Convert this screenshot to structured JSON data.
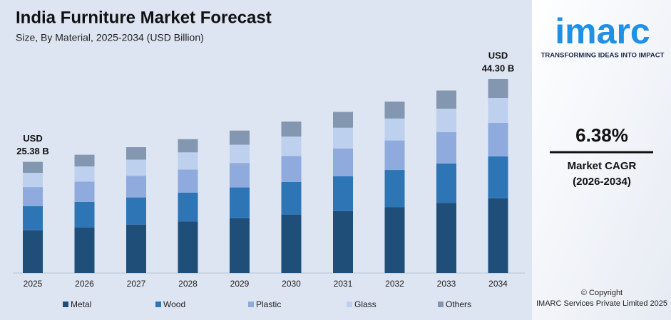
{
  "chart_data": {
    "type": "stacked_bar",
    "title": "India Furniture Market Forecast",
    "subtitle": "Size, By Material, 2025-2034 (USD Billion)",
    "categories": [
      "2025",
      "2026",
      "2027",
      "2028",
      "2029",
      "2030",
      "2031",
      "2032",
      "2033",
      "2034"
    ],
    "series": [
      {
        "name": "Metal",
        "color": "#1f4e79",
        "values": [
          9.77,
          10.4,
          11.06,
          11.77,
          12.52,
          13.31,
          14.16,
          15.07,
          16.03,
          17.06
        ]
      },
      {
        "name": "Wood",
        "color": "#2e75b6",
        "values": [
          5.48,
          5.83,
          6.2,
          6.6,
          7.02,
          7.47,
          7.95,
          8.45,
          8.99,
          9.57
        ]
      },
      {
        "name": "Plastic",
        "color": "#8faadc",
        "values": [
          4.37,
          4.64,
          4.94,
          5.26,
          5.59,
          5.95,
          6.33,
          6.73,
          7.16,
          7.62
        ]
      },
      {
        "name": "Glass",
        "color": "#bdd0ee",
        "values": [
          3.25,
          3.46,
          3.68,
          3.91,
          4.16,
          4.43,
          4.71,
          5.01,
          5.33,
          5.67
        ]
      },
      {
        "name": "Others",
        "color": "#8497b0",
        "values": [
          2.51,
          2.67,
          2.84,
          3.02,
          3.22,
          3.42,
          3.64,
          3.88,
          4.13,
          4.38
        ]
      }
    ],
    "annotations": [
      {
        "lines": [
          "USD",
          "25.38 B"
        ]
      },
      {
        "lines": [
          "USD",
          "44.30 B"
        ]
      }
    ],
    "ylim": [
      0,
      46
    ]
  },
  "sidebar": {
    "logo": "imarc",
    "tagline": "TRANSFORMING IDEAS INTO IMPACT",
    "cagr": "6.38%",
    "cagr_label": "Market CAGR",
    "cagr_period": "(2026-2034)",
    "copyright": "© Copyright",
    "company": "IMARC Services Private Limited 2025"
  }
}
